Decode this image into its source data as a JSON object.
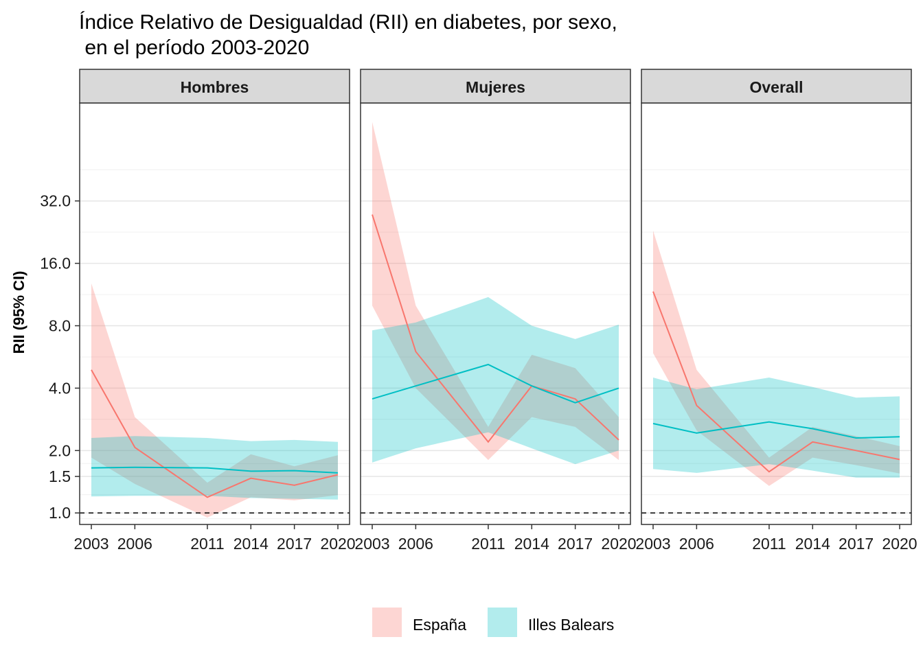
{
  "chart_data": {
    "type": "line",
    "title": [
      "Índice Relativo de Desigualdad (RII) en diabetes, por sexo,",
      " en el período 2003-2020"
    ],
    "ylabel": "RII (95% CI)",
    "xlabel": "",
    "y_scale": "log2",
    "y_ticks": [
      1.0,
      1.5,
      2.0,
      4.0,
      8.0,
      16.0,
      32.0
    ],
    "y_tick_labels": [
      "1.0",
      "1.5",
      "2.0",
      "4.0",
      "8.0",
      "16.0",
      "32.0"
    ],
    "ylim": [
      0.88,
      95
    ],
    "x_ticks": [
      2003,
      2006,
      2011,
      2014,
      2017,
      2020
    ],
    "x_tick_labels": [
      "2003",
      "2006",
      "2011",
      "2014",
      "2017",
      "2020"
    ],
    "reference_line": 1.0,
    "grid": true,
    "legend": {
      "position": "bottom",
      "entries": [
        {
          "name": "España",
          "color": "#F8766D"
        },
        {
          "name": "Illes Balears",
          "color": "#00BFC4"
        }
      ]
    },
    "panels": [
      {
        "name": "Hombres",
        "series": [
          {
            "name": "España",
            "color": "#F8766D",
            "x": [
              2003,
              2006,
              2011,
              2014,
              2017,
              2020
            ],
            "y": [
              4.9,
              2.07,
              1.19,
              1.47,
              1.36,
              1.53
            ],
            "lower": [
              1.85,
              1.38,
              0.95,
              1.19,
              1.15,
              1.22
            ],
            "upper": [
              12.8,
              2.9,
              1.4,
              1.92,
              1.68,
              1.9
            ]
          },
          {
            "name": "Illes Balears",
            "color": "#00BFC4",
            "x": [
              2003,
              2006,
              2011,
              2014,
              2017,
              2020
            ],
            "y": [
              1.65,
              1.66,
              1.65,
              1.59,
              1.6,
              1.56
            ],
            "lower": [
              1.2,
              1.21,
              1.21,
              1.18,
              1.17,
              1.16
            ],
            "upper": [
              2.3,
              2.35,
              2.3,
              2.22,
              2.25,
              2.2
            ]
          }
        ]
      },
      {
        "name": "Mujeres",
        "series": [
          {
            "name": "España",
            "color": "#F8766D",
            "x": [
              2003,
              2006,
              2011,
              2014,
              2017,
              2020
            ],
            "y": [
              27.5,
              6.0,
              2.2,
              4.1,
              3.55,
              2.25
            ],
            "lower": [
              10.0,
              4.0,
              1.8,
              2.9,
              2.6,
              1.8
            ],
            "upper": [
              77.0,
              10.0,
              2.6,
              5.8,
              5.0,
              2.9
            ]
          },
          {
            "name": "Illes Balears",
            "color": "#00BFC4",
            "x": [
              2003,
              2006,
              2011,
              2014,
              2017,
              2020
            ],
            "y": [
              3.55,
              4.1,
              5.2,
              4.1,
              3.4,
              4.0
            ],
            "lower": [
              1.75,
              2.05,
              2.45,
              2.05,
              1.72,
              2.0
            ],
            "upper": [
              7.6,
              8.3,
              11.0,
              8.0,
              6.9,
              8.1
            ]
          }
        ]
      },
      {
        "name": "Overall",
        "series": [
          {
            "name": "España",
            "color": "#F8766D",
            "x": [
              2003,
              2006,
              2011,
              2014,
              2017,
              2020
            ],
            "y": [
              11.7,
              3.3,
              1.58,
              2.2,
              2.0,
              1.81
            ],
            "lower": [
              5.9,
              2.5,
              1.35,
              1.85,
              1.7,
              1.55
            ],
            "upper": [
              23.0,
              4.9,
              1.85,
              2.6,
              2.35,
              2.1
            ]
          },
          {
            "name": "Illes Balears",
            "color": "#00BFC4",
            "x": [
              2003,
              2006,
              2011,
              2014,
              2017,
              2020
            ],
            "y": [
              2.7,
              2.43,
              2.75,
              2.55,
              2.3,
              2.33
            ],
            "lower": [
              1.63,
              1.56,
              1.72,
              1.6,
              1.48,
              1.48
            ],
            "upper": [
              4.5,
              3.95,
              4.5,
              4.05,
              3.6,
              3.65
            ]
          }
        ]
      }
    ]
  }
}
